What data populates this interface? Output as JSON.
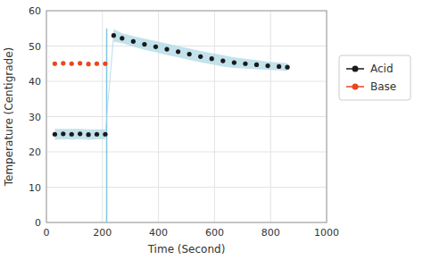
{
  "chart_data": {
    "type": "scatter",
    "x_label": "Time (Second)",
    "y_label": "Temperature (Centigrade)",
    "xlim": [
      0,
      1000
    ],
    "ylim": [
      0,
      60
    ],
    "xticks": [
      0,
      200,
      400,
      600,
      800,
      1000
    ],
    "yticks": [
      0,
      10,
      20,
      30,
      40,
      50,
      60
    ],
    "grid": true,
    "legend": "right",
    "vline": {
      "x": 215,
      "ymin": 0,
      "ymax": 55,
      "color": "#7ec8e3"
    },
    "series": [
      {
        "name": "Acid",
        "color": "#1a1a1a",
        "marker": "circle",
        "x": [
          30,
          60,
          90,
          120,
          150,
          180,
          210,
          240,
          270,
          310,
          350,
          390,
          430,
          470,
          510,
          550,
          590,
          630,
          670,
          710,
          750,
          790,
          830,
          860
        ],
        "values": [
          25.0,
          25.1,
          25.0,
          25.1,
          24.9,
          25.0,
          25.0,
          53.0,
          52.2,
          51.3,
          50.5,
          49.8,
          49.1,
          48.4,
          47.7,
          47.0,
          46.4,
          45.8,
          45.3,
          45.0,
          44.7,
          44.4,
          44.2,
          44.0
        ],
        "band_upper": [
          26.5,
          26.5,
          26.5,
          26.5,
          26.4,
          26.4,
          26.4,
          54.8,
          53.6,
          52.8,
          52.1,
          51.4,
          50.7,
          50.0,
          49.3,
          48.6,
          48.0,
          47.4,
          46.8,
          46.4,
          46.0,
          45.6,
          45.3,
          45.1
        ],
        "band_lower": [
          23.5,
          23.6,
          23.5,
          23.6,
          23.4,
          23.6,
          23.6,
          51.2,
          50.8,
          49.8,
          48.9,
          48.2,
          47.5,
          46.8,
          46.1,
          45.4,
          44.8,
          44.2,
          43.8,
          43.6,
          43.4,
          43.2,
          43.1,
          42.9
        ],
        "band_color": "#add8e6"
      },
      {
        "name": "Base",
        "color": "#e8471e",
        "marker": "circle",
        "x": [
          30,
          60,
          90,
          120,
          150,
          180,
          210
        ],
        "values": [
          45.0,
          45.1,
          45.0,
          45.1,
          44.9,
          45.0,
          45.0
        ]
      }
    ]
  }
}
